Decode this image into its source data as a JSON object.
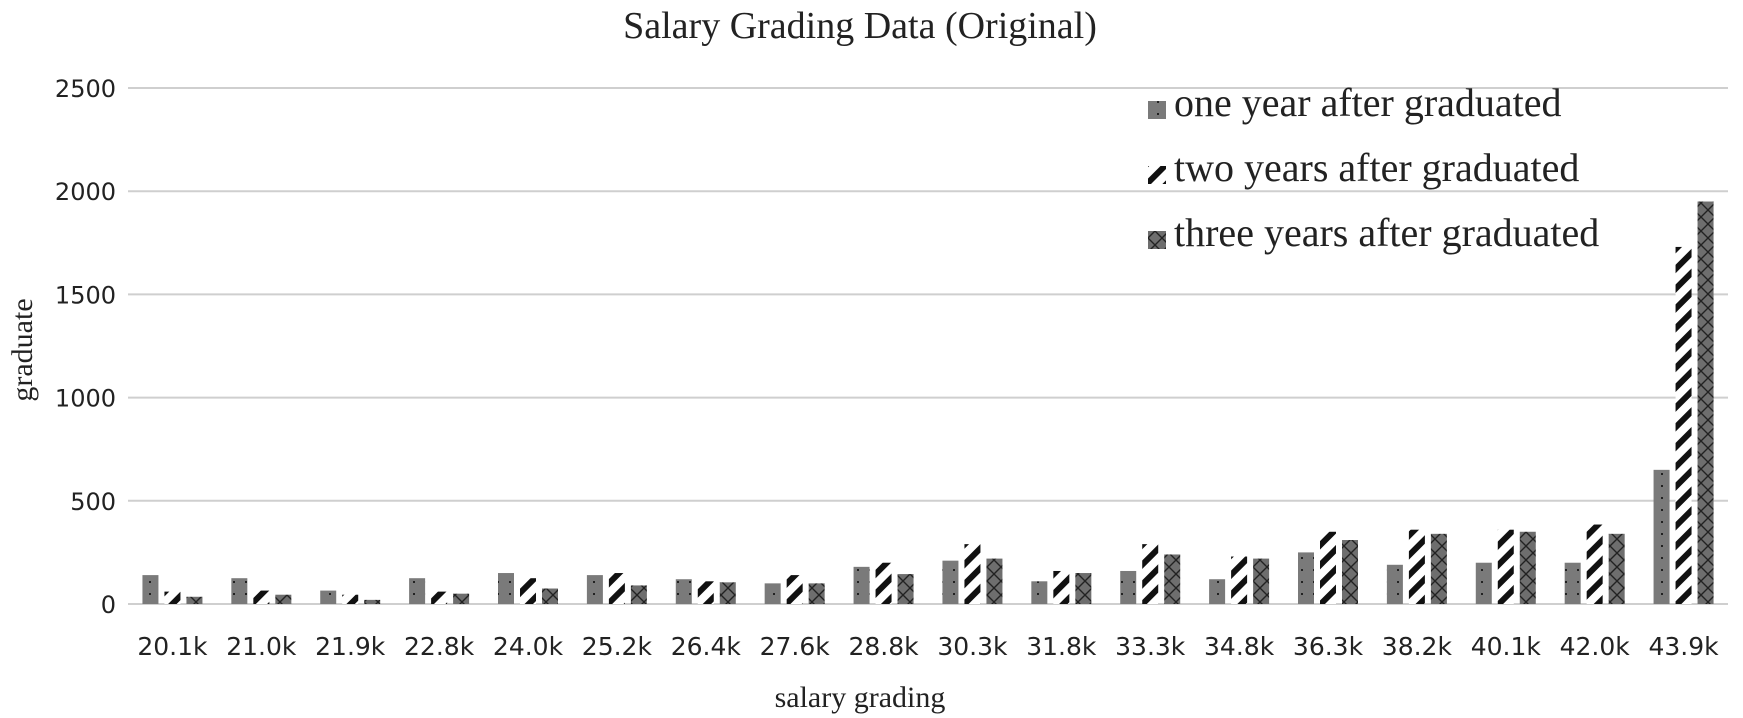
{
  "chart_data": {
    "type": "bar",
    "title": "Salary Grading Data (Original)",
    "xlabel": "salary grading",
    "ylabel": "graduate",
    "ylim": [
      0,
      2500
    ],
    "yticks": [
      "0",
      "500",
      "1000",
      "1500",
      "2000",
      "2500"
    ],
    "categories": [
      "20.1k",
      "21.0k",
      "21.9k",
      "22.8k",
      "24.0k",
      "25.2k",
      "26.4k",
      "27.6k",
      "28.8k",
      "30.3k",
      "31.8k",
      "33.3k",
      "34.8k",
      "36.3k",
      "38.2k",
      "40.1k",
      "42.0k",
      "43.9k"
    ],
    "series": [
      {
        "name": "one year after graduated",
        "values": [
          140,
          125,
          65,
          125,
          150,
          140,
          120,
          100,
          180,
          210,
          110,
          160,
          120,
          250,
          190,
          200,
          200,
          650
        ]
      },
      {
        "name": "two years after graduated",
        "values": [
          60,
          65,
          45,
          60,
          125,
          150,
          110,
          140,
          200,
          290,
          160,
          290,
          230,
          350,
          360,
          360,
          385,
          1730
        ]
      },
      {
        "name": "three years after graduated",
        "values": [
          35,
          45,
          20,
          50,
          75,
          90,
          105,
          100,
          145,
          220,
          150,
          240,
          220,
          310,
          340,
          350,
          340,
          1950
        ]
      }
    ],
    "grid": true,
    "legend_position": "top-right",
    "colors": {
      "one_year": "#7a7a7a",
      "two_years": "#ffffff",
      "two_years_stripe": "#111111",
      "three_years": "#6e6e6e",
      "text": "#222222",
      "grid": "#cfcfcf"
    }
  }
}
